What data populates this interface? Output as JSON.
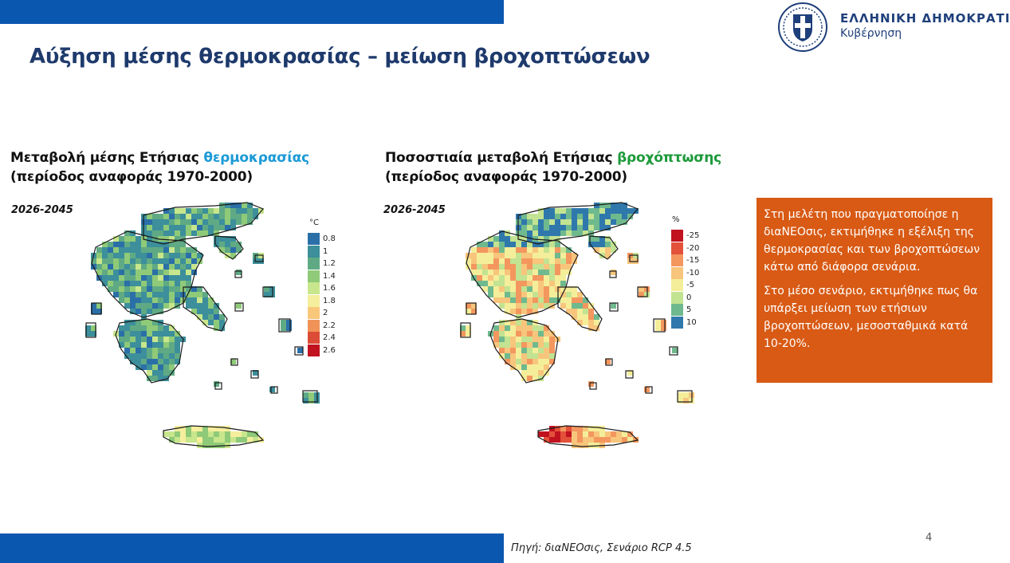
{
  "header": {
    "logo_title": "ΕΛΛΗΝΙΚΗ ΔΗΜΟΚΡΑΤΙΑ",
    "logo_subtitle": "Κυβέρνηση",
    "brand_color": "#0a57b0"
  },
  "page_title": "Αύξηση μέσης θερμοκρασίας – μείωση βροχοπτώσεων",
  "panels": [
    {
      "title_prefix": "Μεταβολή μέσης Ετήσιας ",
      "title_highlight": "θερμοκρασίας",
      "title_line2": "(περίοδος αναφοράς 1970-2000)",
      "period": "2026-2045",
      "legend_unit": "°C",
      "legend": [
        {
          "label": "0.8",
          "color": "#2b6fa8"
        },
        {
          "label": "1",
          "color": "#3c8f9b"
        },
        {
          "label": "1.2",
          "color": "#5faa84"
        },
        {
          "label": "1.4",
          "color": "#8fca78"
        },
        {
          "label": "1.6",
          "color": "#c8e68c"
        },
        {
          "label": "1.8",
          "color": "#f5ee9c"
        },
        {
          "label": "2",
          "color": "#f9c77a"
        },
        {
          "label": "2.2",
          "color": "#f19359"
        },
        {
          "label": "2.4",
          "color": "#dc4b35"
        },
        {
          "label": "2.6",
          "color": "#c1121f"
        }
      ]
    },
    {
      "title_prefix": "Ποσοστιαία μεταβολή Ετήσιας ",
      "title_highlight": "βροχόπτωσης",
      "title_line2": "(περίοδος αναφοράς 1970-2000)",
      "period": "2026-2045",
      "legend_unit": "%",
      "legend": [
        {
          "label": "-25",
          "color": "#c1121f"
        },
        {
          "label": "-20",
          "color": "#e3513a"
        },
        {
          "label": "-15",
          "color": "#f3975f"
        },
        {
          "label": "-10",
          "color": "#f8c57c"
        },
        {
          "label": "-5",
          "color": "#f4ee9a"
        },
        {
          "label": "0",
          "color": "#c2e391"
        },
        {
          "label": "5",
          "color": "#6fb98e"
        },
        {
          "label": "10",
          "color": "#2f78ac"
        }
      ]
    }
  ],
  "info_box": {
    "paragraph1": "Στη μελέτη που πραγματοποίησε η διαΝΕΟσις, εκτιμήθηκε η εξέλιξη της θερμοκρασίας και των βροχοπτώσεων κάτω από διάφορα σενάρια.",
    "paragraph2": "Στο μέσο σενάριο, εκτιμήθηκε πως θα υπάρξει μείωση των ετήσιων βροχοπτώσεων, μεσοσταθμικά κατά 10-20%.",
    "color": "#d85a14"
  },
  "footer": {
    "source": "Πηγή:  διαΝΕΟσις, Σενάριο RCP 4.5",
    "page_number": "4"
  }
}
